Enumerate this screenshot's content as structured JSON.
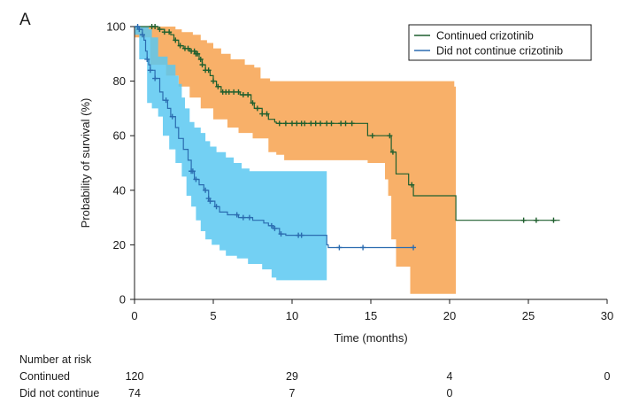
{
  "panel_label": "A",
  "chart_data": {
    "type": "line",
    "subtype": "kaplan-meier",
    "xlabel": "Time (months)",
    "ylabel": "Probability of survival (%)",
    "xlim": [
      0,
      30
    ],
    "ylim": [
      0,
      100
    ],
    "x_ticks": [
      0,
      5,
      10,
      15,
      20,
      25,
      30
    ],
    "y_ticks": [
      0,
      20,
      40,
      60,
      80,
      100
    ],
    "legend_position": "top-right",
    "series": [
      {
        "name": "Continued crizotinib",
        "color": "#1f5f2e",
        "ci_color": "#f7a24f",
        "curve": [
          [
            0,
            100
          ],
          [
            1.2,
            100
          ],
          [
            1.5,
            99
          ],
          [
            1.9,
            98
          ],
          [
            2.3,
            97
          ],
          [
            2.5,
            95
          ],
          [
            2.8,
            93
          ],
          [
            3.1,
            92
          ],
          [
            3.5,
            91
          ],
          [
            3.9,
            90
          ],
          [
            4.1,
            88
          ],
          [
            4.3,
            86
          ],
          [
            4.5,
            84
          ],
          [
            4.8,
            82
          ],
          [
            5.0,
            80
          ],
          [
            5.2,
            78
          ],
          [
            5.5,
            76
          ],
          [
            6.3,
            76
          ],
          [
            6.7,
            75
          ],
          [
            7.2,
            75
          ],
          [
            7.4,
            72
          ],
          [
            7.6,
            70
          ],
          [
            8.1,
            68
          ],
          [
            8.5,
            66
          ],
          [
            8.9,
            65
          ],
          [
            9.0,
            64.5
          ],
          [
            14.4,
            64.5
          ],
          [
            14.8,
            60
          ],
          [
            16.1,
            60
          ],
          [
            16.3,
            54
          ],
          [
            16.6,
            46
          ],
          [
            17.4,
            42
          ],
          [
            17.7,
            38
          ],
          [
            20.3,
            38
          ],
          [
            20.4,
            29
          ],
          [
            27,
            29
          ]
        ],
        "ci_upper": [
          [
            0,
            100
          ],
          [
            1.2,
            100
          ],
          [
            2.0,
            100
          ],
          [
            2.6,
            99
          ],
          [
            3.0,
            98
          ],
          [
            3.7,
            97
          ],
          [
            4.2,
            95
          ],
          [
            4.6,
            94
          ],
          [
            5.0,
            92
          ],
          [
            5.5,
            90
          ],
          [
            6.1,
            88
          ],
          [
            7.0,
            86
          ],
          [
            7.6,
            85
          ],
          [
            8.0,
            81
          ],
          [
            8.6,
            80
          ],
          [
            20.3,
            78
          ],
          [
            20.4,
            78
          ]
        ],
        "ci_lower": [
          [
            0,
            96
          ],
          [
            1.0,
            86
          ],
          [
            2.0,
            82
          ],
          [
            2.8,
            78
          ],
          [
            3.5,
            74
          ],
          [
            4.2,
            70
          ],
          [
            5.0,
            66
          ],
          [
            5.9,
            63
          ],
          [
            6.6,
            61
          ],
          [
            7.5,
            59
          ],
          [
            8.5,
            54
          ],
          [
            9.0,
            53
          ],
          [
            9.5,
            51
          ],
          [
            14.4,
            51
          ],
          [
            14.8,
            50
          ],
          [
            15.9,
            44
          ],
          [
            16.1,
            38
          ],
          [
            16.3,
            22
          ],
          [
            16.6,
            12
          ],
          [
            17.3,
            12
          ],
          [
            17.5,
            2
          ],
          [
            20.3,
            2
          ],
          [
            20.4,
            2
          ]
        ],
        "censor_x": [
          1.1,
          1.3,
          1.6,
          1.9,
          2.2,
          2.6,
          2.9,
          3.2,
          3.4,
          3.6,
          3.8,
          3.9,
          4.0,
          4.2,
          4.3,
          4.5,
          4.7,
          5.0,
          5.3,
          5.6,
          5.8,
          6.0,
          6.3,
          6.6,
          6.9,
          7.2,
          7.5,
          7.8,
          8.1,
          8.4,
          9.2,
          9.6,
          10.0,
          10.3,
          10.6,
          10.8,
          11.2,
          11.5,
          11.8,
          12.2,
          12.5,
          13.1,
          13.4,
          13.8,
          15.1,
          16.2,
          16.4,
          17.6,
          24.7,
          25.5,
          26.6
        ]
      },
      {
        "name": "Did not continue crizotinib",
        "color": "#2b6cb0",
        "ci_color": "#5bc8f1",
        "curve": [
          [
            0,
            100
          ],
          [
            0.3,
            99
          ],
          [
            0.5,
            97
          ],
          [
            0.6,
            95
          ],
          [
            0.7,
            91
          ],
          [
            0.8,
            88
          ],
          [
            0.9,
            86
          ],
          [
            1.0,
            84
          ],
          [
            1.3,
            81
          ],
          [
            1.6,
            76
          ],
          [
            1.8,
            73
          ],
          [
            2.1,
            70
          ],
          [
            2.3,
            67
          ],
          [
            2.6,
            63
          ],
          [
            2.8,
            59
          ],
          [
            3.1,
            55
          ],
          [
            3.4,
            51
          ],
          [
            3.6,
            47
          ],
          [
            3.8,
            44
          ],
          [
            4.1,
            42
          ],
          [
            4.4,
            40
          ],
          [
            4.7,
            37
          ],
          [
            4.8,
            36
          ],
          [
            5.1,
            34
          ],
          [
            5.4,
            32
          ],
          [
            5.9,
            31
          ],
          [
            6.6,
            30
          ],
          [
            7.5,
            29
          ],
          [
            8.2,
            28
          ],
          [
            8.5,
            27
          ],
          [
            8.8,
            26
          ],
          [
            9.2,
            24
          ],
          [
            9.6,
            23.5
          ],
          [
            12.1,
            23.5
          ],
          [
            12.2,
            20
          ],
          [
            12.3,
            19
          ],
          [
            17.7,
            19
          ]
        ],
        "ci_upper": [
          [
            0,
            100
          ],
          [
            0.5,
            100
          ],
          [
            0.9,
            99
          ],
          [
            1.1,
            96
          ],
          [
            1.5,
            89
          ],
          [
            2.1,
            86
          ],
          [
            2.6,
            82
          ],
          [
            2.8,
            79
          ],
          [
            3.0,
            74
          ],
          [
            3.2,
            70
          ],
          [
            3.5,
            65
          ],
          [
            3.8,
            63
          ],
          [
            4.2,
            61
          ],
          [
            4.5,
            58
          ],
          [
            4.8,
            56
          ],
          [
            5.2,
            54
          ],
          [
            5.8,
            52
          ],
          [
            6.3,
            50
          ],
          [
            6.8,
            48
          ],
          [
            7.3,
            47
          ],
          [
            12.1,
            47
          ],
          [
            12.2,
            47
          ]
        ],
        "ci_lower": [
          [
            0,
            97
          ],
          [
            0.3,
            88
          ],
          [
            0.8,
            72
          ],
          [
            1.1,
            70
          ],
          [
            1.5,
            67
          ],
          [
            1.8,
            60
          ],
          [
            2.2,
            55
          ],
          [
            2.6,
            50
          ],
          [
            3.0,
            45
          ],
          [
            3.3,
            38
          ],
          [
            3.6,
            34
          ],
          [
            3.9,
            29
          ],
          [
            4.2,
            25
          ],
          [
            4.5,
            22
          ],
          [
            4.9,
            20
          ],
          [
            5.4,
            18
          ],
          [
            5.8,
            16
          ],
          [
            6.5,
            15
          ],
          [
            7.2,
            13
          ],
          [
            8.1,
            11
          ],
          [
            8.7,
            8
          ],
          [
            9.0,
            7
          ],
          [
            12.1,
            7
          ],
          [
            12.2,
            7
          ]
        ],
        "censor_x": [
          0.2,
          0.3,
          0.5,
          0.8,
          1.0,
          1.3,
          2.0,
          2.4,
          3.6,
          3.7,
          3.9,
          4.5,
          4.7,
          4.8,
          5.2,
          6.5,
          6.9,
          7.3,
          8.7,
          8.9,
          9.3,
          10.4,
          10.6,
          13.0,
          14.5,
          17.7
        ]
      }
    ],
    "risk_table": {
      "title": "Number at risk",
      "rows": [
        {
          "label": "Continued",
          "values": [
            "120",
            "29",
            "4",
            "0"
          ]
        },
        {
          "label": "Did not continue",
          "values": [
            "74",
            "7",
            "0"
          ]
        }
      ]
    }
  }
}
